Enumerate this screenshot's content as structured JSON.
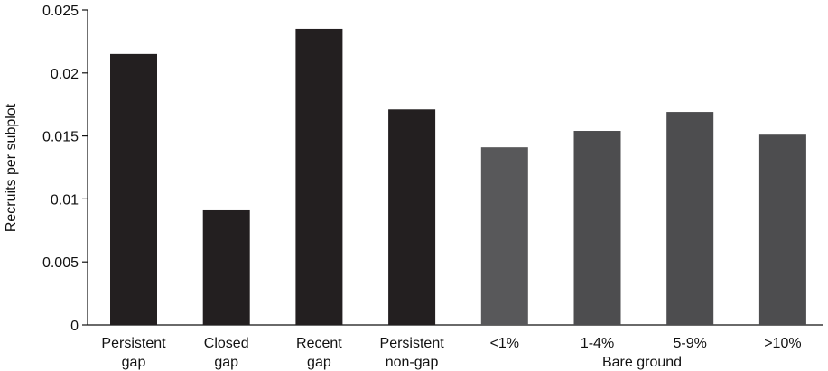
{
  "chart_data": {
    "type": "bar",
    "ylabel": "Recruits per subplot",
    "ylim": [
      0,
      0.025
    ],
    "yticks": [
      "0",
      "0.005",
      "0.01",
      "0.015",
      "0.02",
      "0.025"
    ],
    "grid": false,
    "categories": [
      {
        "line1": "Persistent",
        "line2": "gap"
      },
      {
        "line1": "Closed",
        "line2": "gap"
      },
      {
        "line1": "Recent",
        "line2": "gap"
      },
      {
        "line1": "Persistent",
        "line2": "non-gap"
      },
      {
        "line1": "<1%",
        "line2": ""
      },
      {
        "line1": "1-4%",
        "line2": ""
      },
      {
        "line1": "5-9%",
        "line2": ""
      },
      {
        "line1": ">10%",
        "line2": ""
      }
    ],
    "values": [
      0.0215,
      0.0091,
      0.0235,
      0.0171,
      0.0141,
      0.0154,
      0.0169,
      0.0151
    ],
    "group_label": "Bare ground",
    "colors": [
      "#231f20",
      "#231f20",
      "#231f20",
      "#231f20",
      "#58585a",
      "#4d4d4f",
      "#4d4d4f",
      "#4d4d4f"
    ]
  }
}
